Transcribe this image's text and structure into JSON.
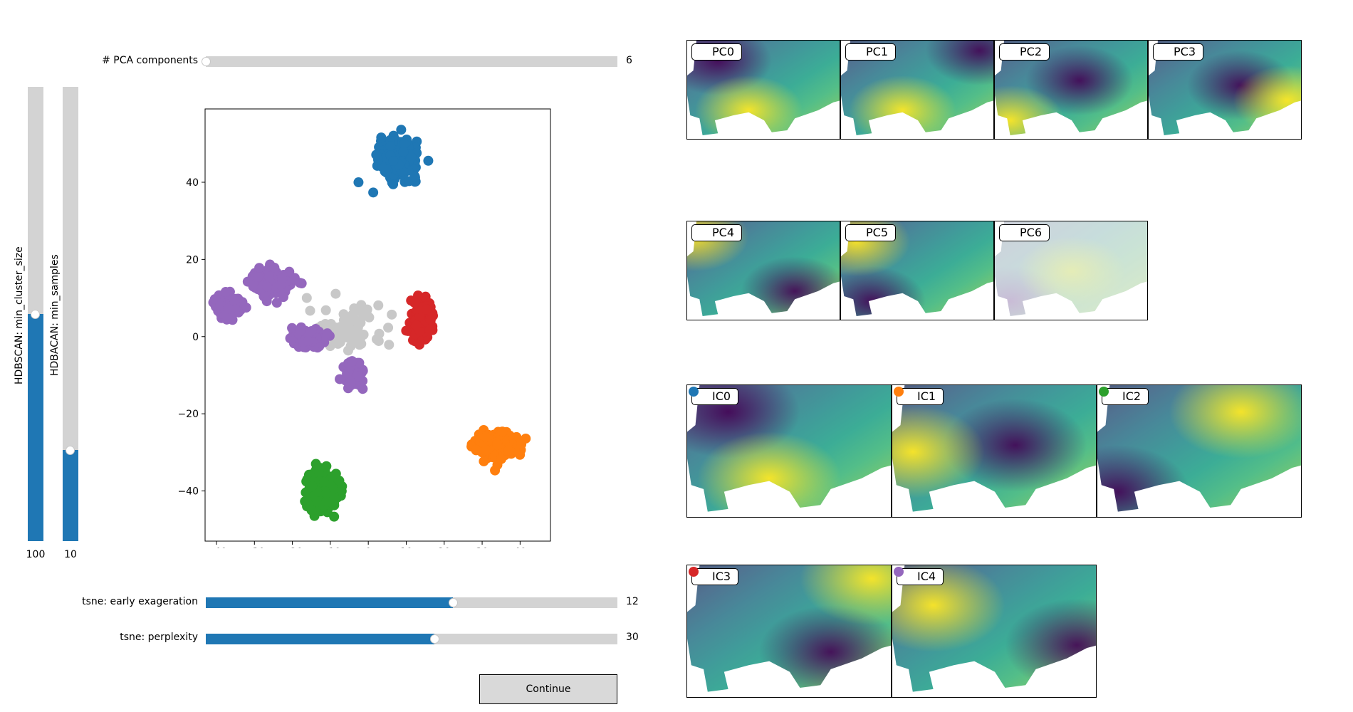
{
  "sliders": {
    "pca": {
      "label": "# PCA components",
      "value": "6",
      "fraction": 0.0
    },
    "early_exag": {
      "label": "tsne: early exageration",
      "value": "12",
      "fraction": 0.6
    },
    "perplexity": {
      "label": "tsne: perplexity",
      "value": "30",
      "fraction": 0.555
    },
    "min_cluster_size": {
      "label": "HDBSCAN: min_cluster_size",
      "value": "100",
      "fraction": 0.5
    },
    "min_samples": {
      "label": "HDBACAN: min_samples",
      "value": "10",
      "fraction": 0.2
    }
  },
  "continue_label": "Continue",
  "colors": {
    "blue": "#1f77b4",
    "orange": "#ff7f0e",
    "green": "#2ca02c",
    "red": "#d62728",
    "purple": "#9467bd",
    "noise": "#c8c8c8",
    "track": "#d3d3d3"
  },
  "chart_data": {
    "type": "scatter",
    "xlim": [
      -43,
      48
    ],
    "ylim": [
      -53,
      59
    ],
    "xticks": [
      -40,
      -30,
      -20,
      -10,
      0,
      10,
      20,
      30,
      40
    ],
    "yticks": [
      -40,
      -20,
      0,
      20,
      40
    ],
    "grid": false,
    "clusters": [
      {
        "name": "",
        "color": "#1f77b4",
        "center": [
          8,
          46
        ],
        "spread": [
          4.5,
          4.5
        ],
        "points": 260
      },
      {
        "name": "",
        "color": "#ff7f0e",
        "center": [
          34,
          -28
        ],
        "spread": [
          5,
          3
        ],
        "points": 260
      },
      {
        "name": "",
        "color": "#2ca02c",
        "center": [
          -12,
          -40
        ],
        "spread": [
          3.5,
          4.5
        ],
        "points": 240
      },
      {
        "name": "",
        "color": "#d62728",
        "center": [
          14,
          4
        ],
        "spread": [
          2.5,
          4
        ],
        "points": 180
      },
      {
        "name": "",
        "color": "#9467bd",
        "center": [
          -25,
          14
        ],
        "spread": [
          5,
          3
        ],
        "points": 160
      },
      {
        "name": "",
        "color": "#9467bd",
        "center": [
          -37,
          8
        ],
        "spread": [
          3,
          3
        ],
        "points": 60
      },
      {
        "name": "",
        "color": "#9467bd",
        "center": [
          -16,
          0
        ],
        "spread": [
          4,
          2.5
        ],
        "points": 80
      },
      {
        "name": "",
        "color": "#9467bd",
        "center": [
          -4,
          -10
        ],
        "spread": [
          2.5,
          3
        ],
        "points": 80
      },
      {
        "name": "",
        "color": "#c8c8c8",
        "center": [
          -6,
          2
        ],
        "spread": [
          9,
          5
        ],
        "points": 100
      }
    ]
  },
  "components": [
    {
      "label": "PC0",
      "dot": "",
      "colormap": "viridis",
      "hot": [
        0.4,
        0.7
      ],
      "cold": [
        0.2,
        0.2
      ]
    },
    {
      "label": "PC1",
      "dot": "",
      "colormap": "viridis",
      "hot": [
        0.4,
        0.7
      ],
      "cold": [
        0.9,
        0.1
      ]
    },
    {
      "label": "PC2",
      "dot": "",
      "colormap": "viridis",
      "hot": [
        0.1,
        0.8
      ],
      "cold": [
        0.55,
        0.4
      ]
    },
    {
      "label": "PC3",
      "dot": "",
      "colormap": "viridis",
      "hot": [
        0.9,
        0.6
      ],
      "cold": [
        0.6,
        0.45
      ]
    },
    {
      "label": "PC4",
      "dot": "",
      "colormap": "viridis",
      "hot": [
        0.05,
        0.15
      ],
      "cold": [
        0.7,
        0.7
      ]
    },
    {
      "label": "PC5",
      "dot": "",
      "colormap": "viridis",
      "hot": [
        0.1,
        0.2
      ],
      "cold": [
        0.2,
        0.8
      ]
    },
    {
      "label": "PC6",
      "dot": "",
      "colormap": "faded",
      "hot": [
        0.5,
        0.5
      ],
      "cold": [
        0.1,
        0.8
      ]
    },
    {
      "label": "IC0",
      "dot": "#1f77b4",
      "colormap": "viridis",
      "hot": [
        0.4,
        0.7
      ],
      "cold": [
        0.2,
        0.2
      ]
    },
    {
      "label": "IC1",
      "dot": "#ff7f0e",
      "colormap": "viridis",
      "hot": [
        0.1,
        0.5
      ],
      "cold": [
        0.6,
        0.45
      ]
    },
    {
      "label": "IC2",
      "dot": "#2ca02c",
      "colormap": "viridis",
      "hot": [
        0.7,
        0.2
      ],
      "cold": [
        0.1,
        0.8
      ]
    },
    {
      "label": "IC3",
      "dot": "#d62728",
      "colormap": "viridis",
      "hot": [
        0.9,
        0.1
      ],
      "cold": [
        0.7,
        0.65
      ]
    },
    {
      "label": "IC4",
      "dot": "#9467bd",
      "colormap": "viridis",
      "hot": [
        0.2,
        0.3
      ],
      "cold": [
        0.9,
        0.6
      ]
    }
  ]
}
